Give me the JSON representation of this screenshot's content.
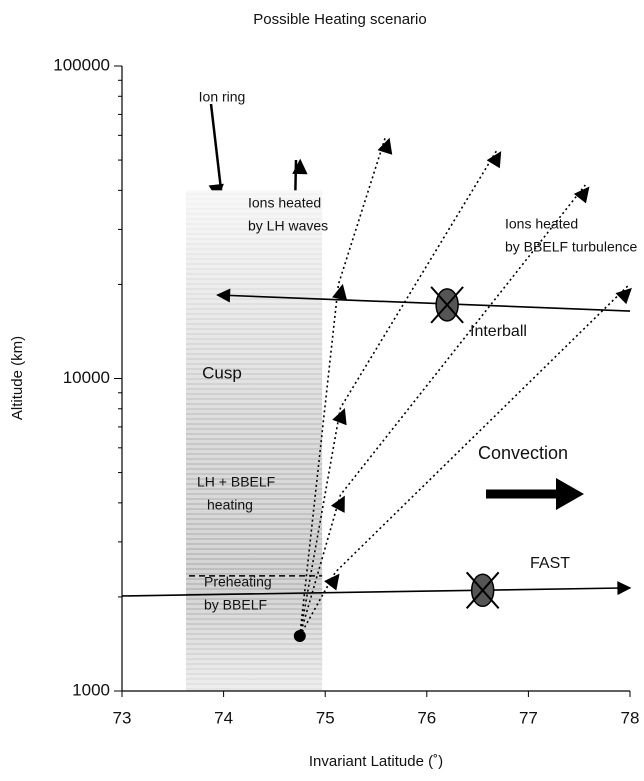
{
  "chart_data": {
    "type": "line",
    "title": "Possible Heating scenario",
    "x_label": "Invariant Latitude (˚)",
    "y_label": "Altitude (km)",
    "xlim": [
      73,
      78
    ],
    "ylim": [
      1000,
      100000
    ],
    "yscale": "log",
    "xticks": [
      73,
      74,
      75,
      76,
      77,
      78
    ],
    "yticks": [
      1000,
      10000,
      100000
    ],
    "yminor_ticks": [
      2000,
      3000,
      4000,
      5000,
      6000,
      7000,
      8000,
      9000,
      20000,
      30000,
      40000,
      50000,
      60000,
      70000,
      80000,
      90000
    ],
    "cusp": {
      "label": "Cusp",
      "x": [
        73.63,
        74.97
      ],
      "y": [
        1000,
        40000
      ]
    },
    "preheating_limit": {
      "x": [
        73.66,
        74.97
      ],
      "y": [
        2335,
        2335
      ]
    },
    "paths": [
      {
        "style": "solid",
        "x": [
          73,
          78
        ],
        "y": [
          2014,
          2138
        ]
      },
      {
        "style": "solid",
        "x": [
          78,
          73.94
        ],
        "y": [
          16440,
          18500
        ]
      },
      {
        "style": "dotted",
        "x": [
          74.75,
          75.13,
          75.59
        ],
        "y": [
          1500,
          20000,
          58900
        ]
      },
      {
        "style": "dotted",
        "x": [
          74.75,
          75.15,
          76.69
        ],
        "y": [
          1500,
          8050,
          53800
        ]
      },
      {
        "style": "dotted",
        "x": [
          74.75,
          75.15,
          77.56
        ],
        "y": [
          1500,
          4240,
          41600
        ]
      },
      {
        "style": "dotted",
        "x": [
          74.75,
          75.1,
          77.98
        ],
        "y": [
          1500,
          2400,
          19800
        ]
      }
    ],
    "source": {
      "x": 74.75,
      "y": 1500
    },
    "satellites": [
      {
        "name": "FAST",
        "x": 76.55,
        "y": 2100
      },
      {
        "name": "Interball",
        "x": 76.2,
        "y": 17200
      }
    ],
    "annotations": [
      [
        "Ion ring"
      ],
      [
        "Ions heated",
        "by LH waves"
      ],
      [
        "Ions heated",
        "by BBELF turbulence"
      ],
      [
        "LH + BBELF",
        "heating"
      ],
      [
        "Convection"
      ],
      [
        "Preheating",
        "by BBELF"
      ]
    ]
  }
}
